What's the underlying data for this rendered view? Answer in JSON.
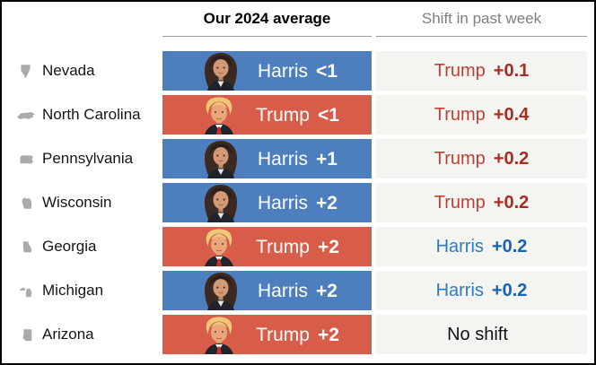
{
  "header": {
    "average_label": "Our 2024 average",
    "shift_label": "Shift in past week"
  },
  "rows": [
    {
      "state": "Nevada",
      "state_key": "nevada",
      "state_icon": "state-icon-nevada",
      "leader": "Harris",
      "margin": "<1",
      "party": "dem",
      "portrait": "harris-portrait-icon",
      "shift_name": "Trump",
      "shift_value": "+0.1",
      "shift_party": "rep"
    },
    {
      "state": "North Carolina",
      "state_key": "north_carolina",
      "state_icon": "state-icon-north-carolina",
      "leader": "Trump",
      "margin": "<1",
      "party": "rep",
      "portrait": "trump-portrait-icon",
      "shift_name": "Trump",
      "shift_value": "+0.4",
      "shift_party": "rep"
    },
    {
      "state": "Pennsylvania",
      "state_key": "pennsylvania",
      "state_icon": "state-icon-pennsylvania",
      "leader": "Harris",
      "margin": "+1",
      "party": "dem",
      "portrait": "harris-portrait-icon",
      "shift_name": "Trump",
      "shift_value": "+0.2",
      "shift_party": "rep"
    },
    {
      "state": "Wisconsin",
      "state_key": "wisconsin",
      "state_icon": "state-icon-wisconsin",
      "leader": "Harris",
      "margin": "+2",
      "party": "dem",
      "portrait": "harris-portrait-icon",
      "shift_name": "Trump",
      "shift_value": "+0.2",
      "shift_party": "rep"
    },
    {
      "state": "Georgia",
      "state_key": "georgia",
      "state_icon": "state-icon-georgia",
      "leader": "Trump",
      "margin": "+2",
      "party": "rep",
      "portrait": "trump-portrait-icon",
      "shift_name": "Harris",
      "shift_value": "+0.2",
      "shift_party": "dem"
    },
    {
      "state": "Michigan",
      "state_key": "michigan",
      "state_icon": "state-icon-michigan",
      "leader": "Harris",
      "margin": "+2",
      "party": "dem",
      "portrait": "harris-portrait-icon",
      "shift_name": "Harris",
      "shift_value": "+0.2",
      "shift_party": "dem"
    },
    {
      "state": "Arizona",
      "state_key": "arizona",
      "state_icon": "state-icon-arizona",
      "leader": "Trump",
      "margin": "+2",
      "party": "rep",
      "portrait": "trump-portrait-icon",
      "shift_name": "No shift",
      "shift_value": "",
      "shift_party": "none"
    }
  ],
  "colors": {
    "dem_bar": "#4d7ebe",
    "rep_bar": "#d75c4a",
    "dem_name": "#2e7bc3",
    "dem_value": "#1563b2",
    "rep_name": "#c23e33",
    "rep_value": "#a92c22",
    "no_shift_text": "#111111",
    "bar_text": "#ffffff",
    "shift_bg": "#f4f4f1",
    "state_icon_gray": "#ababab",
    "header_muted": "#7f7f7f",
    "rule": "#999999"
  },
  "chart_data": {
    "type": "table",
    "title": "",
    "columns": [
      "State",
      "Our 2024 average",
      "Shift in past week"
    ],
    "rows": [
      [
        "Nevada",
        "Harris <1",
        "Trump +0.1"
      ],
      [
        "North Carolina",
        "Trump <1",
        "Trump +0.4"
      ],
      [
        "Pennsylvania",
        "Harris +1",
        "Trump +0.2"
      ],
      [
        "Wisconsin",
        "Harris +2",
        "Trump +0.2"
      ],
      [
        "Georgia",
        "Trump +2",
        "Harris +0.2"
      ],
      [
        "Michigan",
        "Harris +2",
        "Harris +0.2"
      ],
      [
        "Arizona",
        "Trump +2",
        "No shift"
      ]
    ],
    "legend": {
      "harris_lead_color": "#4d7ebe",
      "trump_lead_color": "#d75c4a"
    }
  }
}
